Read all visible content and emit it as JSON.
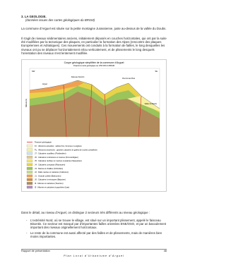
{
  "header": {
    "title": "3. LA GEOLOGIE.",
    "source": "(données issues des cartes géologiques du BRGM)"
  },
  "paragraphs": [
    "La commune d'Arguel est située sur la petite montagne Jurassienne, juste au-dessus de la vallée du Doubs.",
    "Il s'agit de niveaux sédimentaires anciens, initialement déposés en couches horizontales, qui ont par la suite été modifiées par la tectonique des plaques, en particulier la formation des Alpes (rencontre des plaques Européennes et Adriatiques). Ces mouvements ont conduits à la formation de failles, le long desquelles les niveaux ont pu se déplacer horizontalement et/ou verticalement, et de plissements le long desquels l'orientation des niveaux s'est lentement modifiée."
  ],
  "figure": {
    "title": "Coupe géologique simplifiée de la commune d'Arguel",
    "subtitle": "D'après la carte géologique au 1/50 000 du BRGM",
    "labels": [
      "NW",
      "SE",
      "Arguel",
      "Faisceau bisontin",
      "Chemin des Buis",
      "Vallée du Doubs",
      "Altitude (m)"
    ],
    "legend": [
      "Fracture géologique",
      "Fz : Alluvions actuelles : sables fins, limoneux à argileux",
      "Fy : Alluvions anciennes : graviers calcaires et galets de roches cristallines",
      "J7 : Calcaires rocailleux (Portlandien)",
      "J6 : Calcaires à tubulures et marnes (Kimméridgien)",
      "J5 : Calcaires récifaux et marnes à astartes (Séquanien)",
      "J4 : Calcaires compacts (Rauracien)",
      "J3 : Marnes à chailles (Oxfordien)",
      "J2 : Dalle nacrée et calcaires (Callovien)",
      "J1 : Grande oolithe (Bathonien)",
      "J0 : Calcaires à entroques (Bajocien)",
      "I6 : Marnes et calcaires (Toarcien)",
      "I5 : Marnes et calcaires à gryphées (Lias)"
    ]
  },
  "detail": {
    "intro": "Dans le détail, au niveau d'Arguel, on distingue 2 secteurs très différents au niveau géologique :",
    "bullets": [
      "L'extrémité Nord, où se trouve le village, est situé sur un important plissement, appelé le faisceau Bisontin. Ce secteur est marqué par d'importantes failles orientées ENE/OSO, et par un basculement important des niveaux originellement horizontaux.",
      "Le reste de la commune est aussi affecté par des failles et de plissements, mais de manières bien moins importantes."
    ]
  },
  "footer": {
    "left": "Rapport de présentation",
    "page": "48",
    "center": "Plan Local d'Urbanisme d'Arguel"
  }
}
